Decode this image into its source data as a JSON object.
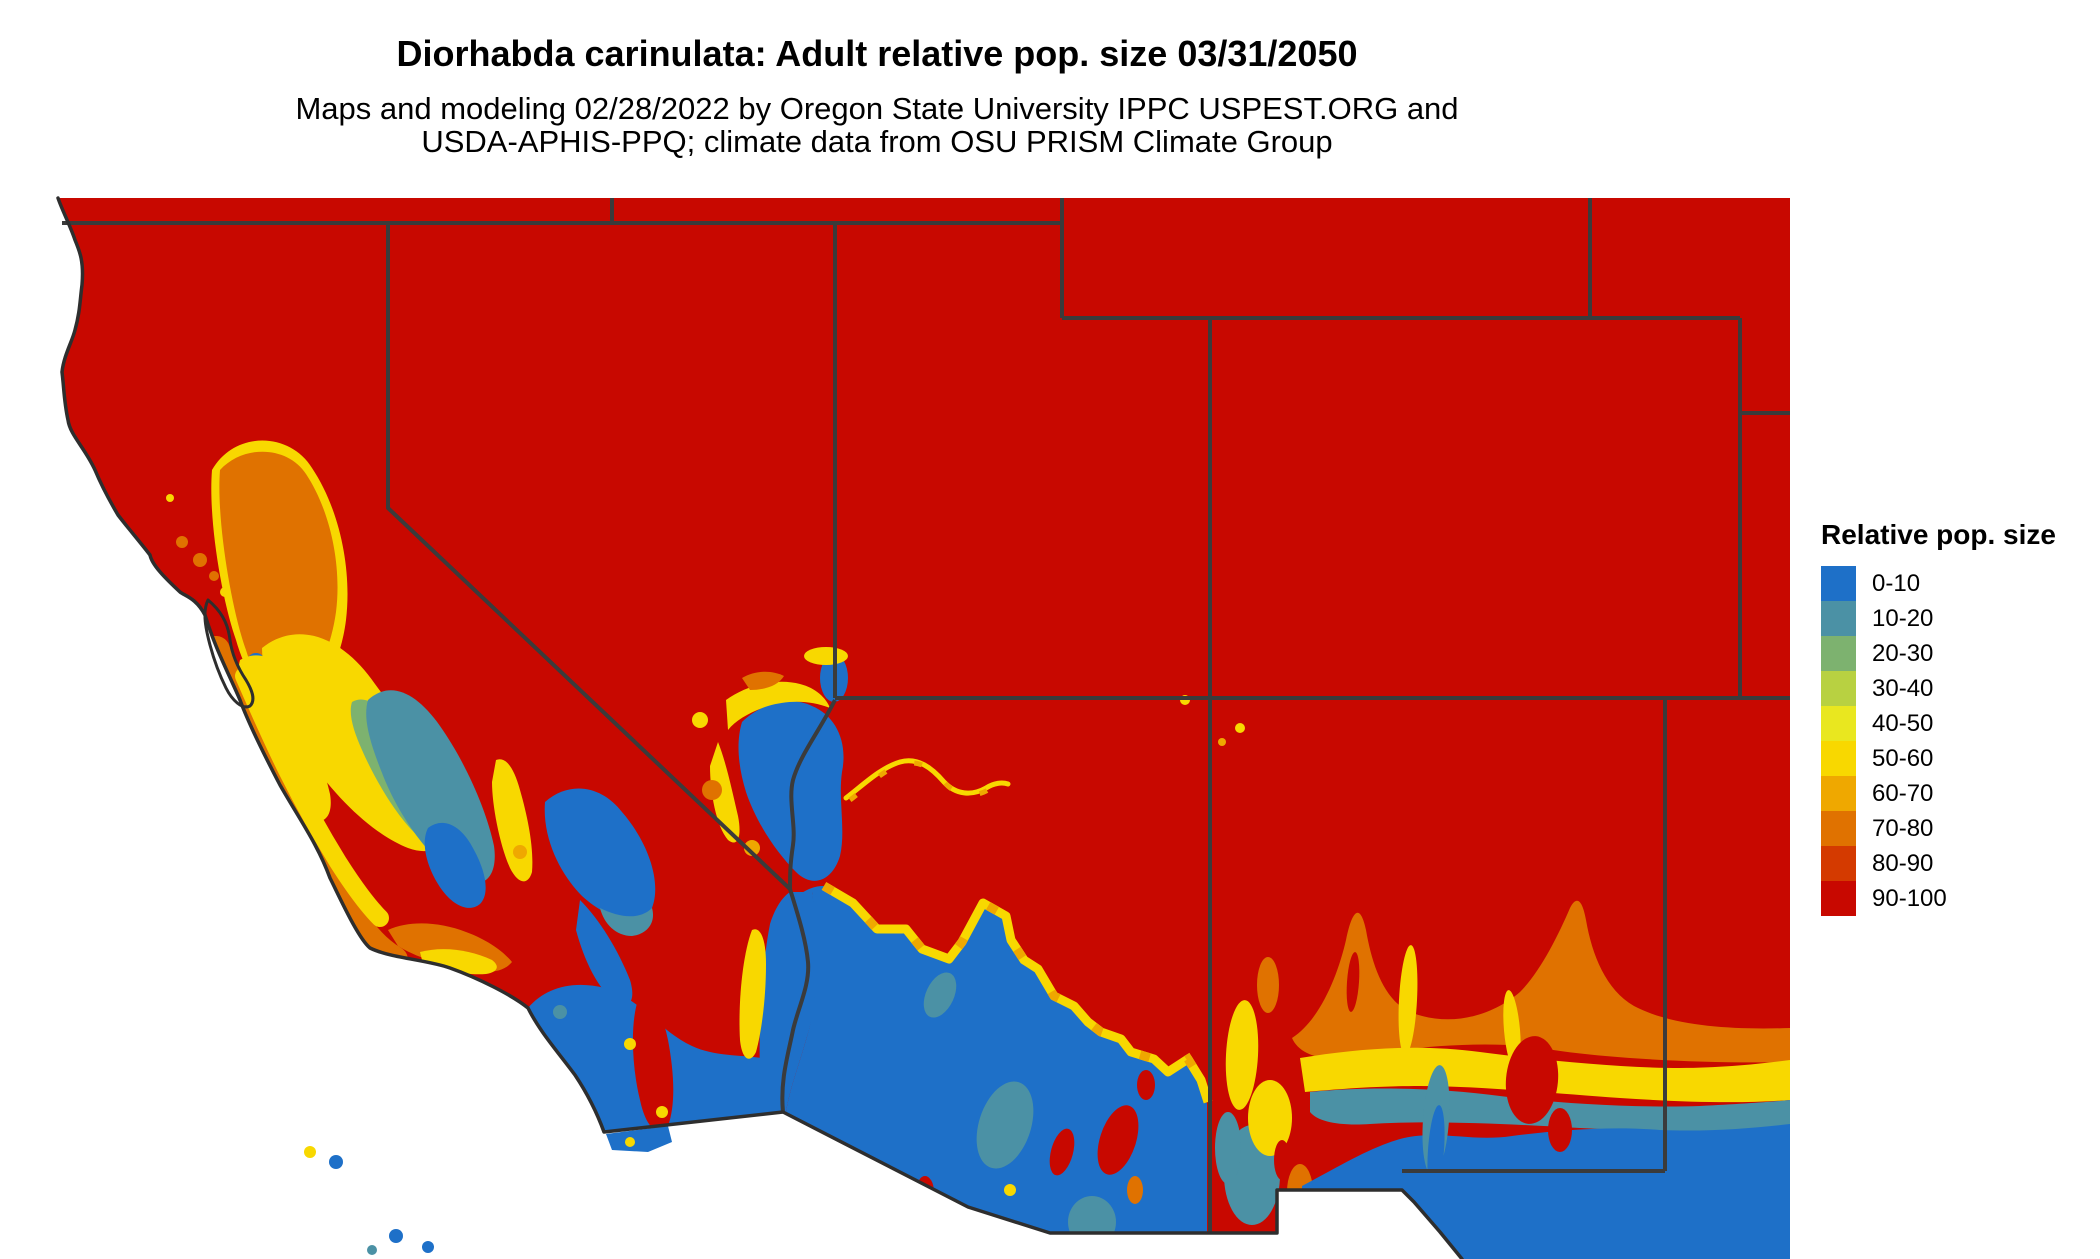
{
  "header": {
    "title": "Diorhabda carinulata: Adult relative pop. size 03/31/2050",
    "subtitle_line1": "Maps and modeling 02/28/2022 by Oregon State University IPPC USPEST.ORG and",
    "subtitle_line2": "USDA-APHIS-PPQ; climate data from OSU PRISM Climate Group"
  },
  "legend": {
    "title": "Relative pop. size",
    "items": [
      {
        "label": "0-10",
        "color": "#1e70c8"
      },
      {
        "label": "10-20",
        "color": "#4b91a5"
      },
      {
        "label": "20-30",
        "color": "#7db26f"
      },
      {
        "label": "30-40",
        "color": "#b8d141"
      },
      {
        "label": "40-50",
        "color": "#e9e71f"
      },
      {
        "label": "50-60",
        "color": "#f8d800"
      },
      {
        "label": "60-70",
        "color": "#efa800"
      },
      {
        "label": "70-80",
        "color": "#e07200"
      },
      {
        "label": "80-90",
        "color": "#d43a00"
      },
      {
        "label": "90-100",
        "color": "#c80800"
      }
    ]
  },
  "map": {
    "border_color": "#3b3b3b",
    "coast_color": "#2e2e2e",
    "background_color": "#ffffff"
  }
}
